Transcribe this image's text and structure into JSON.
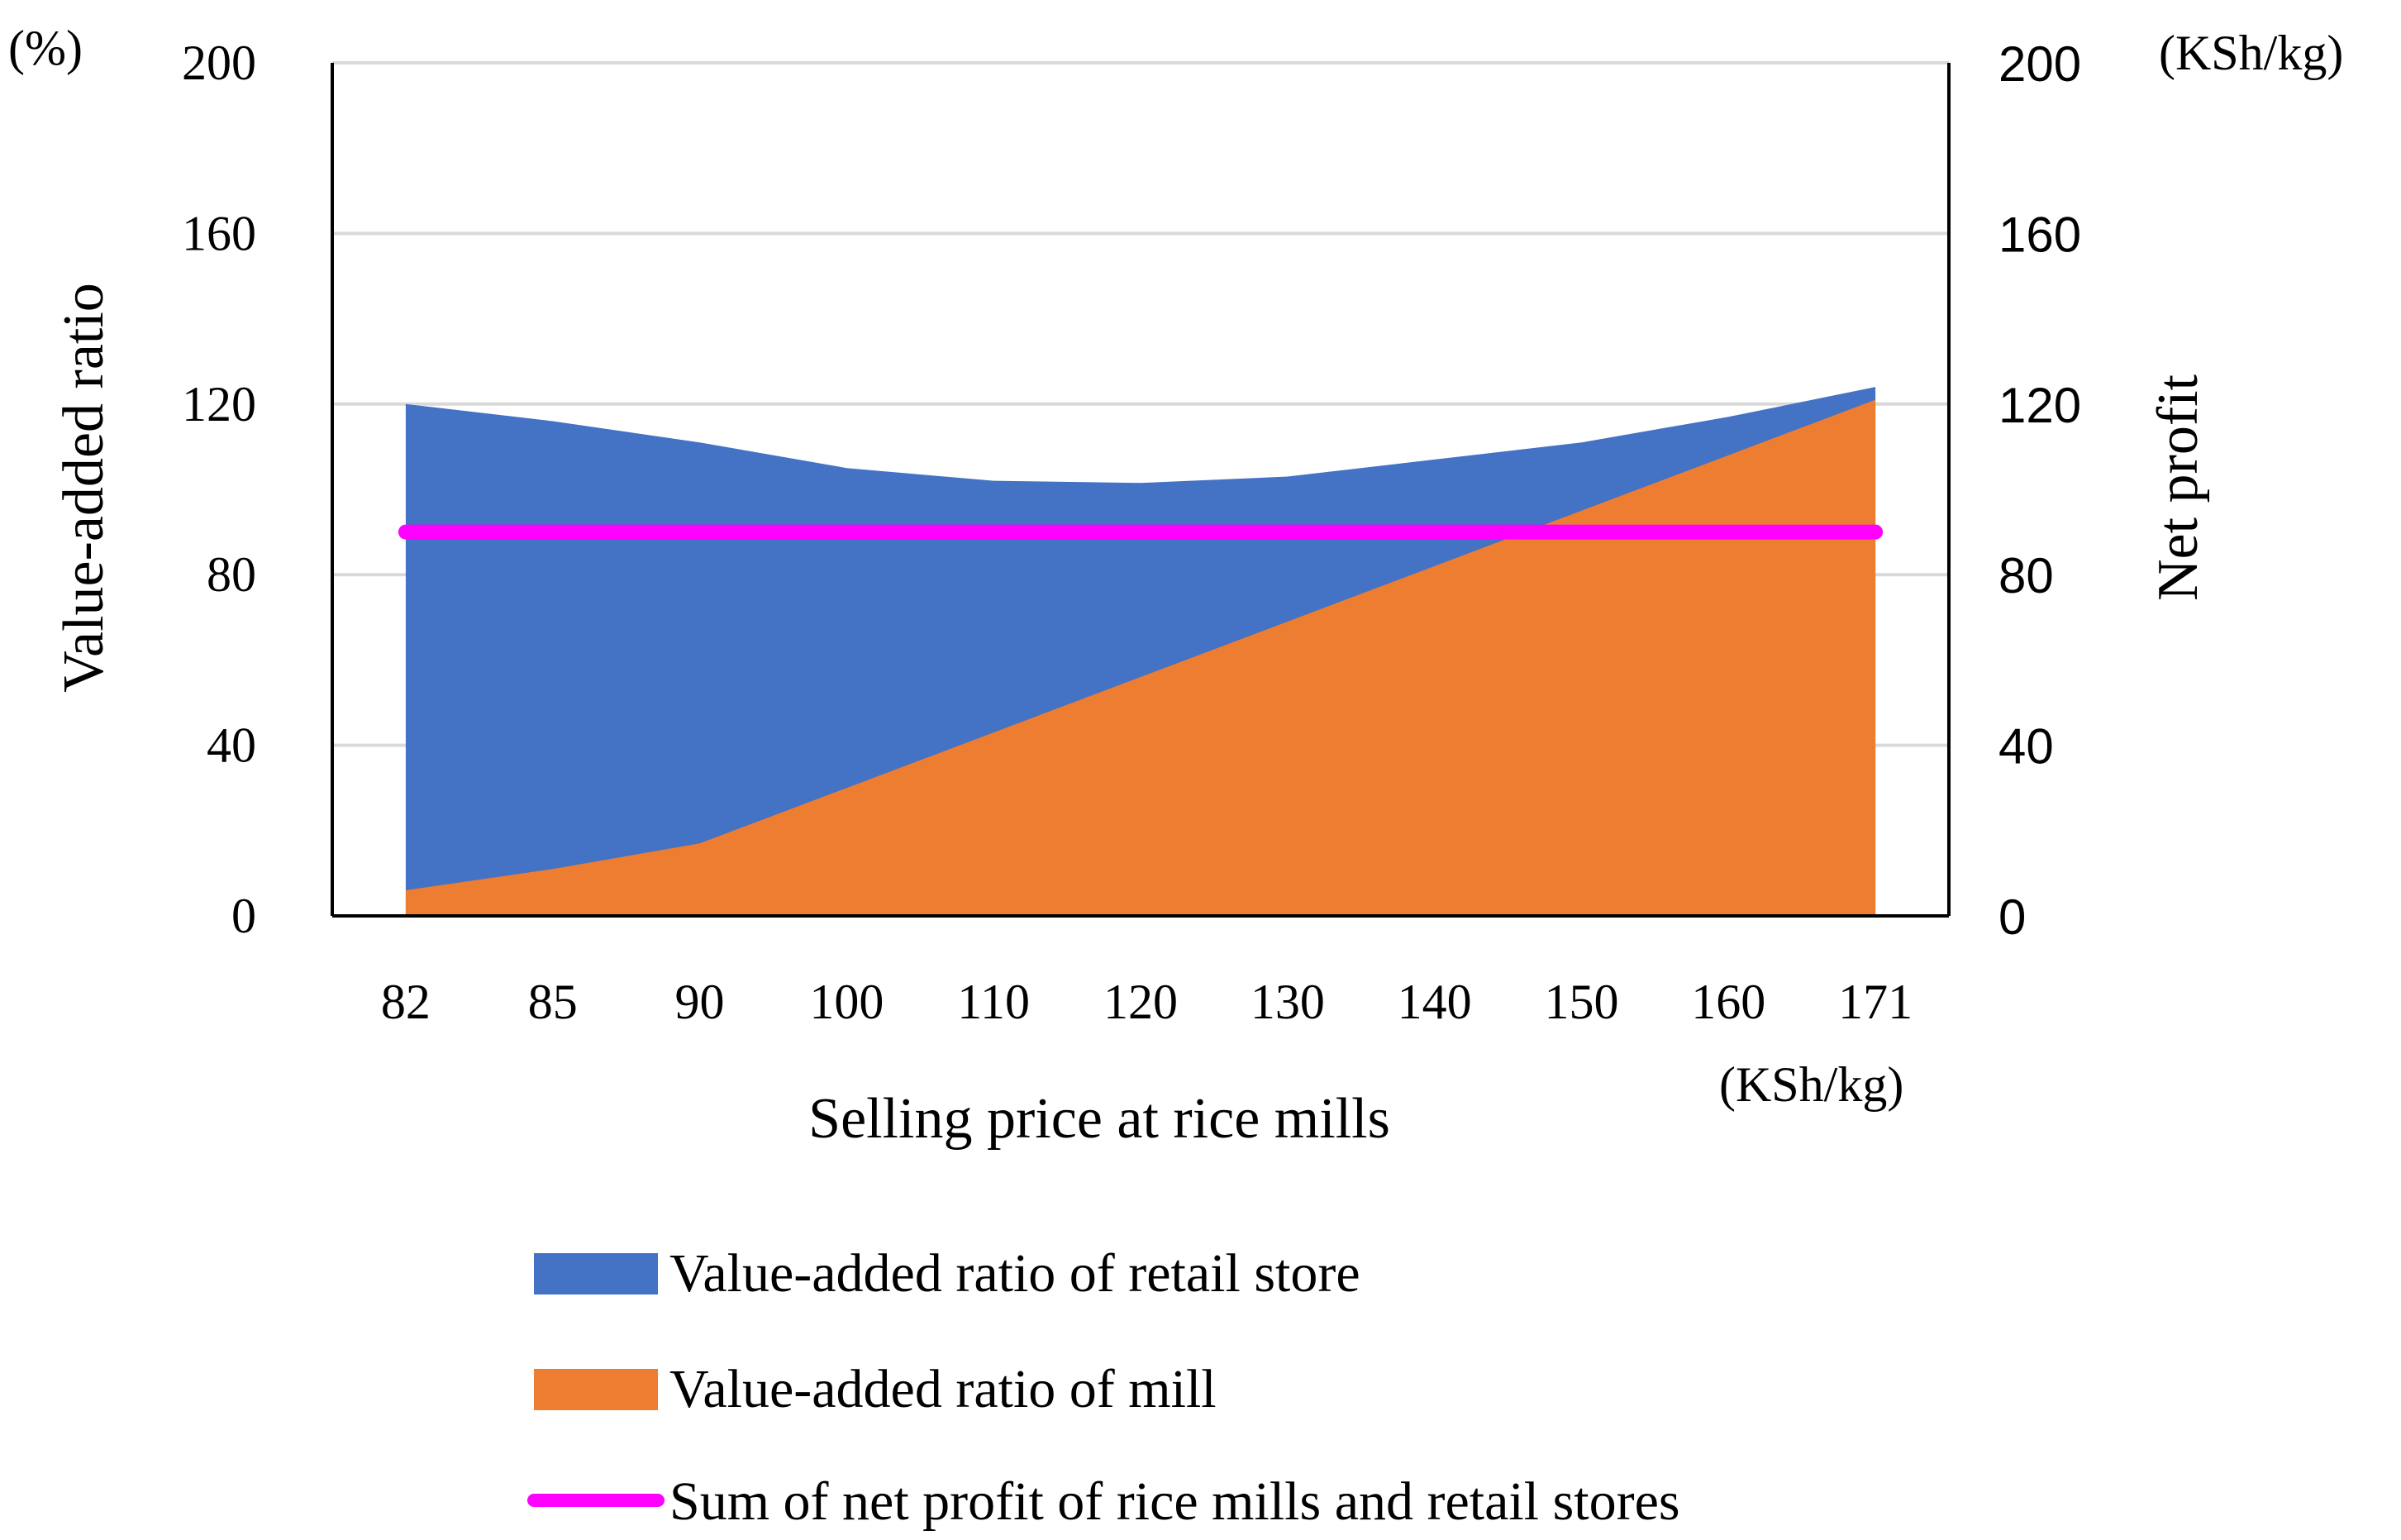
{
  "chart_data": {
    "type": "area",
    "categories": [
      "82",
      "85",
      "90",
      "100",
      "110",
      "120",
      "130",
      "140",
      "150",
      "160",
      "171"
    ],
    "series": [
      {
        "name": "Value-added ratio of retail store",
        "type": "area",
        "axis": "left",
        "stacked_total": [
          120,
          116,
          111,
          105,
          102,
          101.5,
          103,
          107,
          111,
          117,
          124
        ],
        "color": "#4472C4"
      },
      {
        "name": "Value-added ratio of mill",
        "type": "area",
        "axis": "left",
        "values": [
          6,
          11,
          17,
          30,
          43,
          56,
          69,
          82,
          95,
          108,
          121
        ],
        "color": "#ED7D31"
      },
      {
        "name": "Sum of net profit of rice mills and retail stores",
        "type": "line",
        "axis": "right",
        "values": [
          90,
          90,
          90,
          90,
          90,
          90,
          90,
          90,
          90,
          90,
          90
        ],
        "color": "#FF00FF"
      }
    ],
    "xlabel": "Selling price at rice mills",
    "xunit": "(KSh/kg)",
    "ylabel_left": "Value-added ratio",
    "yunit_left": "(%)",
    "ylabel_right": "Net profit",
    "yunit_right": "(KSh/kg)",
    "ylim": [
      0,
      200
    ],
    "yticks": [
      "0",
      "40",
      "80",
      "120",
      "160",
      "200"
    ],
    "y2lim": [
      0,
      200
    ],
    "y2ticks": [
      "0",
      "40",
      "80",
      "120",
      "160",
      "200"
    ],
    "grid": true,
    "legend_position": "bottom"
  }
}
